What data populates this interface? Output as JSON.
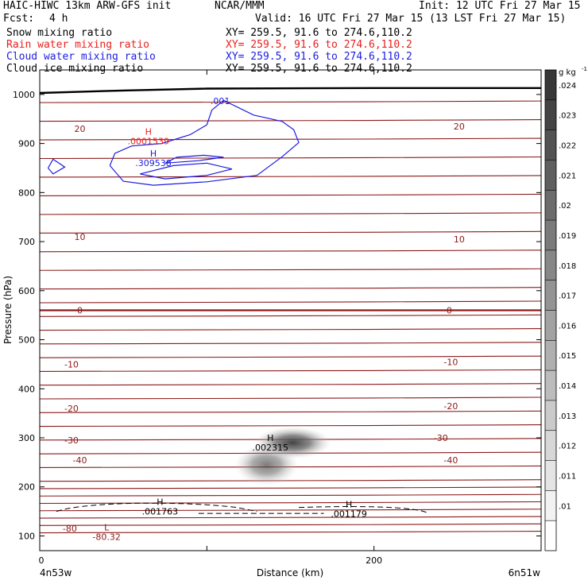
{
  "header": {
    "model": "HAIC-HIWC 13km ARW-GFS init",
    "org": "NCAR/MMM",
    "init": "Init: 12 UTC Fri 27 Mar 15",
    "fcst_label": "Fcst:",
    "fcst_value": "4 h",
    "valid": "Valid: 16 UTC Fri 27 Mar 15 (13 LST Fri 27 Mar 15)"
  },
  "legend": [
    {
      "name": "Snow mixing ratio",
      "color": "#000000",
      "xy": "XY= 259.5, 91.6 to 274.6,110.2"
    },
    {
      "name": "Rain water mixing ratio",
      "color": "#e8201c",
      "xy": "XY= 259.5, 91.6 to 274.6,110.2"
    },
    {
      "name": "Cloud water mixing ratio",
      "color": "#1c1ce0",
      "xy": "XY= 259.5, 91.6 to 274.6,110.2"
    },
    {
      "name": "Cloud ice mixing ratio",
      "color": "#000000",
      "xy": "XY= 259.5, 91.6 to 274.6,110.2"
    }
  ],
  "colors": {
    "temperature": "#8b1a1a",
    "cloud_water": "#1c1ce0",
    "rain": "#e8201c",
    "snow": "#000000"
  },
  "chart_data": {
    "type": "contour-cross-section",
    "ylabel": "Pressure (hPa)",
    "xlabel": "Distance (km)",
    "x_start_label": "4n53w",
    "x_end_label": "6n51w",
    "xlim": [
      0,
      300
    ],
    "ylim": [
      1050,
      70
    ],
    "x_ticks": [
      0,
      100,
      200
    ],
    "x_tick_labels": [
      "0",
      "200"
    ],
    "y_ticks": [
      100,
      200,
      300,
      400,
      500,
      600,
      700,
      800,
      900,
      1000
    ],
    "colorbar": {
      "unit": "g kg",
      "unit_exp": "-1",
      "levels": [
        0.01,
        0.011,
        0.012,
        0.013,
        0.014,
        0.015,
        0.016,
        0.017,
        0.018,
        0.019,
        0.02,
        0.021,
        0.022,
        0.023,
        0.024
      ]
    },
    "temperature_labels": [
      {
        "text": "-80",
        "x": 18,
        "p": 115
      },
      {
        "text": "-40",
        "x": 24,
        "p": 255
      },
      {
        "text": "-40",
        "x": 246,
        "p": 255
      },
      {
        "text": "-30",
        "x": 19,
        "p": 295
      },
      {
        "text": "-30",
        "x": 240,
        "p": 300
      },
      {
        "text": "-20",
        "x": 19,
        "p": 360
      },
      {
        "text": "-20",
        "x": 246,
        "p": 365
      },
      {
        "text": "-10",
        "x": 19,
        "p": 450
      },
      {
        "text": "-10",
        "x": 246,
        "p": 455
      },
      {
        "text": "0",
        "x": 24,
        "p": 560
      },
      {
        "text": "0",
        "x": 245,
        "p": 560
      },
      {
        "text": "10",
        "x": 24,
        "p": 710
      },
      {
        "text": "10",
        "x": 251,
        "p": 705
      },
      {
        "text": "20",
        "x": 24,
        "p": 930
      },
      {
        "text": "20",
        "x": 251,
        "p": 935
      }
    ],
    "temperature_minimum": {
      "label": "L",
      "value": "-80.32",
      "x": 40,
      "p": 108
    },
    "ice_maximum": {
      "label": "H",
      "value": ".002315",
      "x": 138,
      "p": 290
    },
    "snow_maxima": [
      {
        "label": "H",
        "value": ".001763",
        "x": 72,
        "p": 160
      },
      {
        "label": "H",
        "value": ".001179",
        "x": 185,
        "p": 155
      }
    ],
    "cloud_water_maximum": {
      "label": "H",
      "value": ".309538",
      "x": 68,
      "p": 870
    },
    "cloud_water_label": {
      "value": ".001",
      "x": 108,
      "p": 980
    },
    "rain_maximum": {
      "label": "H",
      "value": ".0001539",
      "x": 65,
      "p": 915
    },
    "cloud_water_contours": [
      [
        [
          5,
          850
        ],
        [
          8,
          838
        ],
        [
          15,
          852
        ],
        [
          8,
          868
        ],
        [
          5,
          850
        ]
      ],
      [
        [
          42,
          855
        ],
        [
          50,
          823
        ],
        [
          68,
          815
        ],
        [
          100,
          822
        ],
        [
          130,
          835
        ],
        [
          145,
          873
        ],
        [
          155,
          902
        ],
        [
          152,
          928
        ],
        [
          145,
          945
        ],
        [
          128,
          958
        ],
        [
          110,
          988
        ],
        [
          103,
          968
        ],
        [
          100,
          938
        ],
        [
          90,
          918
        ],
        [
          73,
          900
        ],
        [
          55,
          895
        ],
        [
          45,
          880
        ],
        [
          42,
          855
        ]
      ],
      [
        [
          60,
          838
        ],
        [
          75,
          828
        ],
        [
          100,
          835
        ],
        [
          115,
          848
        ],
        [
          100,
          860
        ],
        [
          80,
          855
        ],
        [
          60,
          838
        ]
      ],
      [
        [
          75,
          860
        ],
        [
          95,
          865
        ],
        [
          110,
          872
        ],
        [
          98,
          876
        ],
        [
          82,
          872
        ],
        [
          75,
          860
        ]
      ]
    ],
    "ice_blob": {
      "x": 150,
      "p": 290
    },
    "surface_pressure": [
      [
        0,
        1003
      ],
      [
        50,
        1008
      ],
      [
        100,
        1012
      ],
      [
        200,
        1013
      ],
      [
        300,
        1013
      ]
    ]
  }
}
